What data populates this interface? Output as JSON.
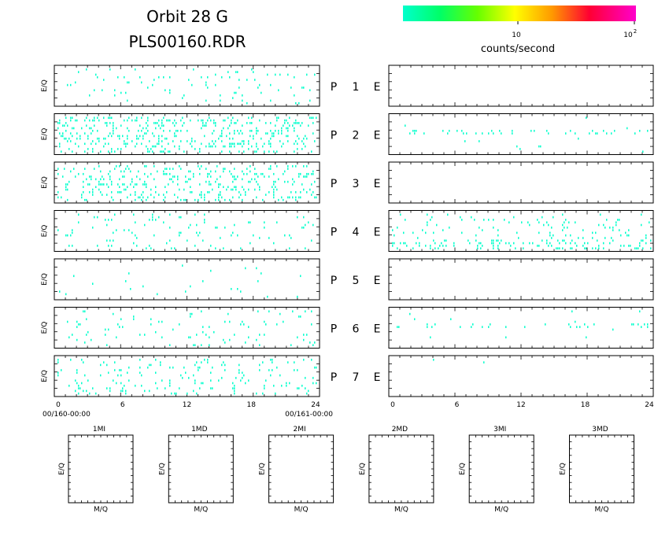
{
  "header": {
    "title_line1": "Orbit  28  G",
    "title_line2": "PLS00160.RDR"
  },
  "colorbar": {
    "colors": [
      "#00ffcc",
      "#00ff66",
      "#66ff00",
      "#ffff00",
      "#ff9900",
      "#ff0033",
      "#ff00cc"
    ],
    "tick_10": "10",
    "tick_100": "10",
    "tick_100_exp": "2",
    "label": "counts/second"
  },
  "chart_data": {
    "type": "heatmap",
    "x_ticks": [
      "0",
      "6",
      "12",
      "18",
      "24"
    ],
    "xlim": [
      0,
      24
    ],
    "x_start_label": "00/160-00:00",
    "x_end_label": "00/161-00:00",
    "ylabel": "E/Q",
    "point_color": "#00ffcc",
    "rows": [
      {
        "p": "P",
        "n": "1",
        "e": "E",
        "left_density": 0.1,
        "right_density": 0.0,
        "seed": 11
      },
      {
        "p": "P",
        "n": "2",
        "e": "E",
        "left_density": 0.55,
        "right_density": 0.12,
        "seed": 22
      },
      {
        "p": "P",
        "n": "3",
        "e": "E",
        "left_density": 0.4,
        "right_density": 0.0,
        "seed": 33
      },
      {
        "p": "P",
        "n": "4",
        "e": "E",
        "left_density": 0.12,
        "right_density": 0.3,
        "seed": 44
      },
      {
        "p": "P",
        "n": "5",
        "e": "E",
        "left_density": 0.04,
        "right_density": 0.0,
        "seed": 55
      },
      {
        "p": "P",
        "n": "6",
        "e": "E",
        "left_density": 0.14,
        "right_density": 0.1,
        "seed": 66
      },
      {
        "p": "P",
        "n": "7",
        "e": "E",
        "left_density": 0.22,
        "right_density": 0.005,
        "seed": 77
      }
    ]
  },
  "bottom_panels": {
    "titles": [
      "1MI",
      "1MD",
      "2MI",
      "2MD",
      "3MI",
      "3MD"
    ],
    "ylabel": "E/Q",
    "xlabel": "M/Q"
  }
}
